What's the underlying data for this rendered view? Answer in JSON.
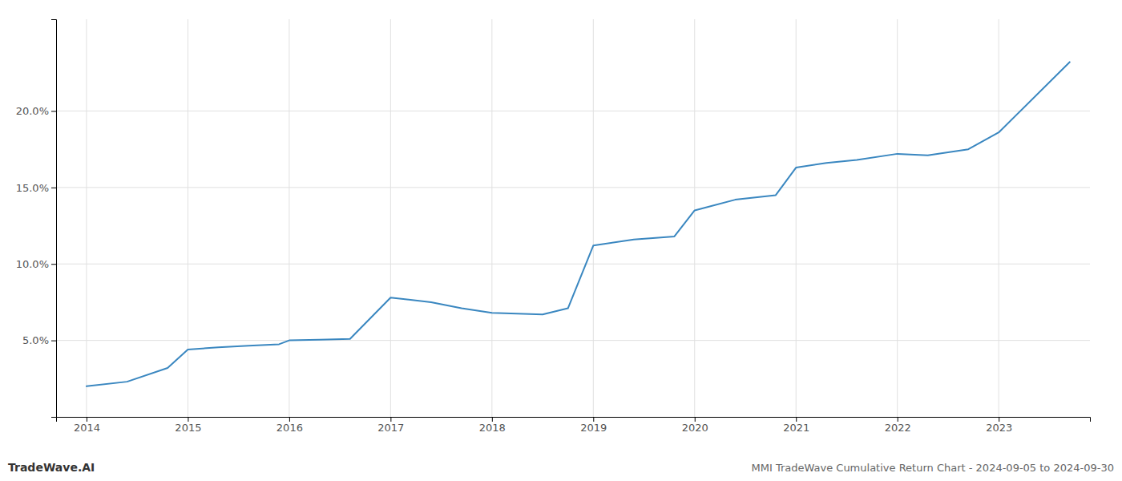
{
  "chart_data": {
    "type": "line",
    "title": "MMI TradeWave Cumulative Return Chart - 2024-09-05 to 2024-09-30",
    "annotations": [
      "TradeWave.AI"
    ],
    "color": "#3a87c0",
    "x": [
      2014.0,
      2014.4,
      2014.8,
      2015.0,
      2015.3,
      2015.6,
      2015.9,
      2016.0,
      2016.3,
      2016.6,
      2017.0,
      2017.4,
      2017.7,
      2018.0,
      2018.25,
      2018.5,
      2018.75,
      2019.0,
      2019.4,
      2019.8,
      2020.0,
      2020.4,
      2020.8,
      2021.0,
      2021.3,
      2021.6,
      2022.0,
      2022.3,
      2022.7,
      2023.0,
      2023.7
    ],
    "values": [
      2.0,
      2.3,
      3.2,
      4.4,
      4.55,
      4.65,
      4.75,
      5.0,
      5.05,
      5.1,
      7.8,
      7.5,
      7.1,
      6.8,
      6.75,
      6.7,
      7.1,
      11.2,
      11.6,
      11.8,
      13.5,
      14.2,
      14.5,
      16.3,
      16.6,
      16.8,
      17.2,
      17.1,
      17.5,
      18.6,
      23.2
    ],
    "xlim": [
      2013.7,
      2023.9
    ],
    "ylim": [
      0,
      26
    ],
    "xticks": [
      2014,
      2015,
      2016,
      2017,
      2018,
      2019,
      2020,
      2021,
      2022,
      2023
    ],
    "yticks": [
      {
        "value": 5.0,
        "label": "5.0%"
      },
      {
        "value": 10.0,
        "label": "10.0%"
      },
      {
        "value": 15.0,
        "label": "15.0%"
      },
      {
        "value": 20.0,
        "label": "20.0%"
      }
    ],
    "grid": true
  }
}
